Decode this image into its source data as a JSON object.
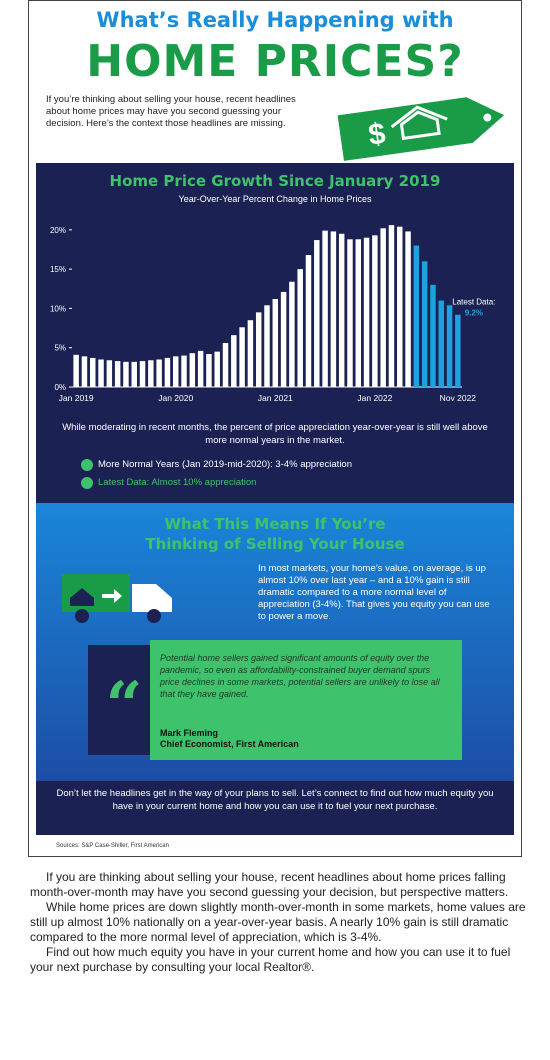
{
  "header": {
    "title_line1": "What’s Really Happening with",
    "title_line2": "HOME PRICES?",
    "intro": "If you’re thinking about selling your house, recent headlines about home prices may have you second guessing your decision. Here’s the context those headlines are missing.",
    "tag_symbol": "$"
  },
  "chart_data": {
    "type": "bar",
    "title": "Home Price Growth Since January 2019",
    "subtitle": "Year-Over-Year Percent Change in Home Prices",
    "categories": [
      "Jan 2019",
      null,
      null,
      null,
      null,
      null,
      null,
      null,
      null,
      null,
      null,
      null,
      "Jan 2020",
      null,
      null,
      null,
      null,
      null,
      null,
      null,
      null,
      null,
      null,
      null,
      "Jan 2021",
      null,
      null,
      null,
      null,
      null,
      null,
      null,
      null,
      null,
      null,
      null,
      "Jan 2022",
      null,
      null,
      null,
      null,
      null,
      null,
      null,
      null,
      null,
      "Nov 2022"
    ],
    "values": [
      4.1,
      3.9,
      3.7,
      3.5,
      3.4,
      3.3,
      3.2,
      3.2,
      3.3,
      3.4,
      3.5,
      3.7,
      3.9,
      4.0,
      4.3,
      4.6,
      4.2,
      4.5,
      5.6,
      6.6,
      7.6,
      8.5,
      9.5,
      10.4,
      11.2,
      12.1,
      13.4,
      15.0,
      16.8,
      18.7,
      19.9,
      19.8,
      19.5,
      18.8,
      18.8,
      19.0,
      19.3,
      20.2,
      20.6,
      20.4,
      19.8,
      18.0,
      16.0,
      13.0,
      11.0,
      10.4,
      9.2
    ],
    "colors": [
      "#ffffff",
      "#ffffff",
      "#ffffff",
      "#ffffff",
      "#ffffff",
      "#ffffff",
      "#ffffff",
      "#ffffff",
      "#ffffff",
      "#ffffff",
      "#ffffff",
      "#ffffff",
      "#ffffff",
      "#ffffff",
      "#ffffff",
      "#ffffff",
      "#ffffff",
      "#ffffff",
      "#ffffff",
      "#ffffff",
      "#ffffff",
      "#ffffff",
      "#ffffff",
      "#ffffff",
      "#ffffff",
      "#ffffff",
      "#ffffff",
      "#ffffff",
      "#ffffff",
      "#ffffff",
      "#ffffff",
      "#ffffff",
      "#ffffff",
      "#ffffff",
      "#ffffff",
      "#ffffff",
      "#ffffff",
      "#ffffff",
      "#ffffff",
      "#ffffff",
      "#ffffff",
      "#1da1e0",
      "#1da1e0",
      "#1da1e0",
      "#1da1e0",
      "#1da1e0",
      "#1da1e0"
    ],
    "ylim": [
      0,
      21
    ],
    "yticks": [
      {
        "value": 0,
        "label": "0%"
      },
      {
        "value": 5,
        "label": "5%"
      },
      {
        "value": 10,
        "label": "10%"
      },
      {
        "value": 15,
        "label": "15%"
      },
      {
        "value": 20,
        "label": "20%"
      }
    ],
    "grid": false,
    "annotation": "Latest Data:",
    "annotation_value_label": "9.2%"
  },
  "panel": {
    "note": "While moderating in recent months, the percent of price appreciation year-over-year is still well above more normal years in the market.",
    "bullets": [
      "More Normal Years (Jan 2019-mid-2020): 3-4% appreciation",
      "Latest Data: Almost 10% appreciation"
    ]
  },
  "section": {
    "heading": "What This Means If You’re Thinking of Selling Your House",
    "paragraph": "In most markets, your home’s value, on average, is up almost 10% over last year – and a 10% gain is still dramatic compared to a more normal level of appreciation (3-4%). That gives you equity you can use to power a move.",
    "quote_mark": "“",
    "quote": "Potential home sellers gained significant amounts of equity over the pandemic, so even as affordability-constrained buyer demand spurs price declines in some markets, potential sellers are unlikely to lose all that they have gained.",
    "quote_name": "Mark Fleming",
    "quote_role": "Chief Economist, First American"
  },
  "footer": {
    "text": "Don’t let the headlines get in the way of your plans to sell. Let’s connect to find out how much equity you have in your current home and how you can use it to fuel your next purchase.",
    "sources": "Sources: S&P Case-Shiller, First American"
  },
  "body": {
    "paragraphs": [
      "If you are thinking about selling your house, recent headlines about home prices falling month-over-month may have you second guessing your decision, but perspective matters.",
      "While home prices are down slightly month-over-month in some markets, home values are still up almost 10% nationally on a year-over-year basis. A nearly 10% gain is still dramatic compared to the more normal level of appreciation, which is 3-4%.",
      "Find out how much equity you have in your current home and how you can use it to fuel your next purchase by consulting your local Realtor®."
    ]
  }
}
